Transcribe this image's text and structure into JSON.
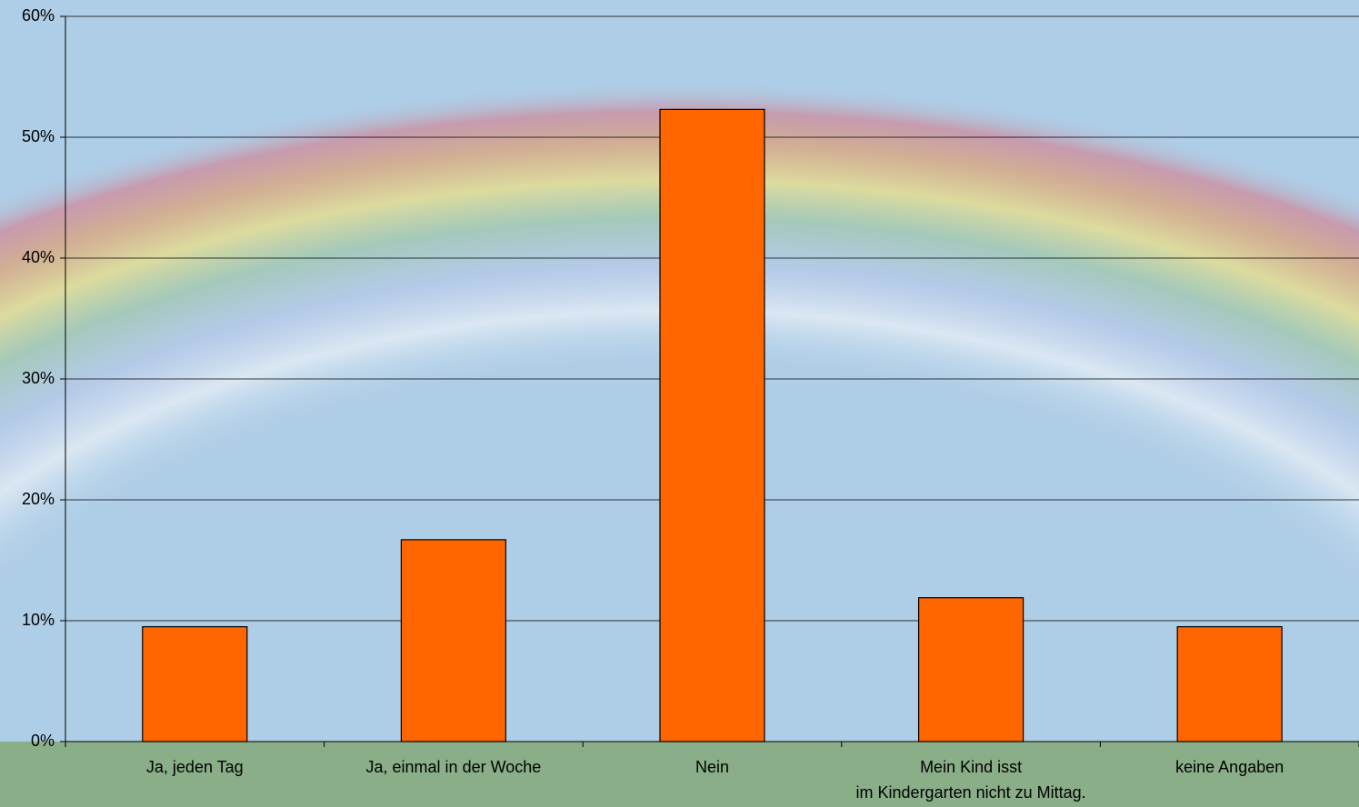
{
  "chart_data": {
    "type": "bar",
    "categories": [
      "Ja, jeden Tag",
      "Ja, einmal in der Woche",
      "Nein",
      "Mein Kind isst im Kindergarten nicht zu Mittag.",
      "keine Angaben"
    ],
    "values": [
      9.5,
      16.7,
      52.3,
      11.9,
      9.5
    ],
    "color": "#ff6600",
    "ylim": [
      0,
      60
    ],
    "yticks": [
      {
        "value": 0,
        "label": "0%"
      },
      {
        "value": 10,
        "label": "10%"
      },
      {
        "value": 20,
        "label": "20%"
      },
      {
        "value": 30,
        "label": "30%"
      },
      {
        "value": 40,
        "label": "40%"
      },
      {
        "value": 50,
        "label": "50%"
      },
      {
        "value": 60,
        "label": "60%"
      }
    ],
    "grid": true
  }
}
